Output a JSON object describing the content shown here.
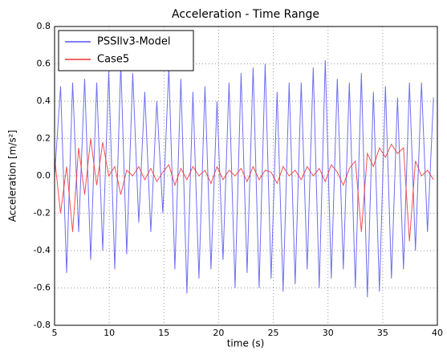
{
  "chart_data": {
    "type": "line",
    "title": "Acceleration - Time Range",
    "x_label": "time (s)",
    "y_label": "Acceleration [m/s²]",
    "x": [
      5,
      5.55,
      6.1,
      6.65,
      7.2,
      7.75,
      8.3,
      8.85,
      9.4,
      9.95,
      10.5,
      11.05,
      11.6,
      12.15,
      12.7,
      13.25,
      13.8,
      14.35,
      14.9,
      15.45,
      16,
      16.55,
      17.1,
      17.65,
      18.2,
      18.75,
      19.3,
      19.85,
      20.4,
      20.95,
      21.5,
      22.05,
      22.6,
      23.15,
      23.7,
      24.25,
      24.8,
      25.35,
      25.9,
      26.45,
      27,
      27.55,
      28.1,
      28.65,
      29.2,
      29.75,
      30.3,
      30.85,
      31.4,
      31.95,
      32.5,
      33.05,
      33.6,
      34.15,
      34.7,
      35.25,
      35.8,
      36.35,
      36.9,
      37.45,
      38,
      38.55,
      39.1,
      39.65
    ],
    "series": [
      {
        "name": "PSSIlv3-Model",
        "color": "#5555ee",
        "values": [
          0.0,
          0.48,
          -0.52,
          0.5,
          -0.3,
          0.52,
          -0.45,
          0.5,
          -0.4,
          0.56,
          -0.5,
          0.6,
          -0.42,
          0.55,
          -0.25,
          0.45,
          -0.3,
          0.4,
          -0.2,
          0.58,
          -0.5,
          0.52,
          -0.63,
          0.45,
          -0.55,
          0.48,
          -0.5,
          0.4,
          -0.45,
          0.5,
          -0.6,
          0.55,
          -0.52,
          0.58,
          -0.6,
          0.6,
          -0.55,
          0.45,
          -0.62,
          0.5,
          -0.58,
          0.5,
          -0.5,
          0.58,
          -0.6,
          0.62,
          -0.55,
          0.52,
          -0.5,
          0.5,
          -0.6,
          0.55,
          -0.65,
          0.45,
          -0.62,
          0.48,
          -0.55,
          0.42,
          -0.5,
          0.5,
          -0.4,
          0.5,
          -0.3,
          0.42
        ]
      },
      {
        "name": "Case5",
        "color": "#ee3333",
        "values": [
          0.1,
          -0.2,
          0.05,
          -0.3,
          0.15,
          -0.1,
          0.2,
          -0.05,
          0.18,
          0.0,
          0.05,
          -0.1,
          0.03,
          0.0,
          0.05,
          -0.02,
          0.04,
          -0.03,
          0.02,
          0.06,
          -0.05,
          0.04,
          -0.02,
          0.05,
          0.0,
          0.03,
          -0.04,
          0.05,
          -0.02,
          0.03,
          0.0,
          0.04,
          -0.03,
          0.05,
          -0.02,
          0.03,
          0.02,
          -0.04,
          0.05,
          0.0,
          0.03,
          -0.02,
          0.05,
          0.0,
          0.04,
          -0.03,
          0.06,
          0.02,
          -0.05,
          0.04,
          0.08,
          -0.3,
          0.12,
          0.05,
          0.15,
          0.1,
          0.17,
          0.12,
          0.15,
          -0.35,
          0.08,
          0.0,
          0.03,
          -0.02
        ]
      }
    ],
    "xlim": [
      5,
      40
    ],
    "xticks": [
      5,
      10,
      15,
      20,
      25,
      30,
      35,
      40
    ],
    "ylim": [
      -0.8,
      0.8
    ],
    "yticks": [
      -0.8,
      -0.6,
      -0.4,
      -0.2,
      {
        "value": 0,
        "label": "0.0"
      },
      0.2,
      0.4,
      0.6,
      0.8
    ],
    "grid": true,
    "legend": "upper-left"
  }
}
